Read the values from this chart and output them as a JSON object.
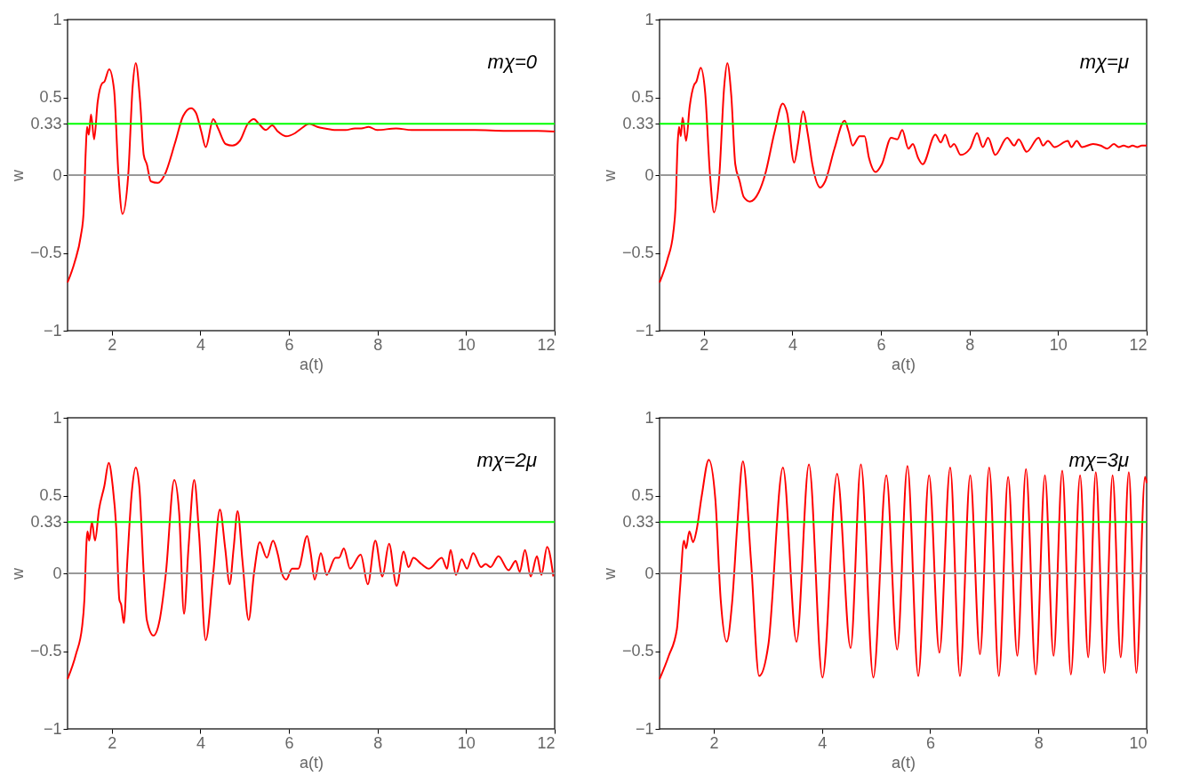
{
  "chart_data": [
    {
      "type": "line",
      "xlabel": "a(t)",
      "ylabel": "w",
      "xlim": [
        1,
        12
      ],
      "ylim": [
        -1,
        1
      ],
      "xticks": [
        2,
        4,
        6,
        8,
        10,
        12
      ],
      "yticks": [
        -1,
        -0.5,
        0,
        0.33,
        0.5,
        1
      ],
      "grid": false,
      "annotations": [
        "mχ=0"
      ],
      "ref_lines": [
        {
          "axis": "y",
          "value": 0.33,
          "color": "#00ff00"
        },
        {
          "axis": "y",
          "value": 0,
          "color": "#999999"
        }
      ],
      "series": [
        {
          "color": "#ff0000",
          "x": [
            1,
            1.16,
            1.3,
            1.36,
            1.41,
            1.44,
            1.48,
            1.53,
            1.6,
            1.68,
            1.78,
            1.83,
            1.94,
            2.05,
            2.15,
            2.24,
            2.37,
            2.47,
            2.54,
            2.64,
            2.72,
            2.79,
            2.88,
            3.04,
            3.19,
            3.43,
            3.61,
            3.79,
            3.9,
            4.02,
            4.12,
            4.29,
            4.4,
            4.57,
            4.72,
            4.89,
            5.07,
            5.21,
            5.32,
            5.48,
            5.62,
            5.75,
            5.93,
            6.14,
            6.28,
            6.46,
            6.64,
            6.81,
            7.06,
            7.28,
            7.49,
            7.63,
            7.8,
            7.99,
            8.42,
            8.77,
            9.48,
            10.2,
            10.91,
            11.62,
            12
          ],
          "values": [
            -0.69,
            -0.56,
            -0.39,
            -0.25,
            0.15,
            0.31,
            0.26,
            0.39,
            0.23,
            0.47,
            0.59,
            0.6,
            0.68,
            0.55,
            0.0,
            -0.25,
            0.0,
            0.57,
            0.72,
            0.47,
            0.13,
            0.07,
            -0.04,
            -0.05,
            0.0,
            0.21,
            0.38,
            0.43,
            0.4,
            0.28,
            0.18,
            0.36,
            0.3,
            0.2,
            0.19,
            0.22,
            0.33,
            0.36,
            0.33,
            0.29,
            0.32,
            0.28,
            0.25,
            0.27,
            0.3,
            0.33,
            0.31,
            0.3,
            0.29,
            0.29,
            0.3,
            0.3,
            0.31,
            0.29,
            0.3,
            0.29,
            0.29,
            0.29,
            0.285,
            0.285,
            0.28
          ]
        }
      ]
    },
    {
      "type": "line",
      "xlabel": "a(t)",
      "ylabel": "w",
      "xlim": [
        1,
        12
      ],
      "ylim": [
        -1,
        1
      ],
      "xticks": [
        2,
        4,
        6,
        8,
        10,
        12
      ],
      "yticks": [
        -1,
        -0.5,
        0,
        0.33,
        0.5,
        1
      ],
      "grid": false,
      "annotations": [
        "mχ=μ"
      ],
      "ref_lines": [
        {
          "axis": "y",
          "value": 0.33,
          "color": "#00ff00"
        },
        {
          "axis": "y",
          "value": 0,
          "color": "#999999"
        }
      ],
      "series": [
        {
          "color": "#ff0000",
          "x": [
            1,
            1.18,
            1.31,
            1.36,
            1.41,
            1.44,
            1.48,
            1.52,
            1.6,
            1.68,
            1.78,
            1.83,
            1.93,
            2.03,
            2.14,
            2.23,
            2.35,
            2.46,
            2.53,
            2.62,
            2.71,
            2.81,
            2.9,
            3.04,
            3.24,
            3.38,
            3.6,
            3.78,
            3.88,
            4.04,
            4.13,
            4.24,
            4.35,
            4.45,
            4.63,
            4.74,
            4.95,
            5.18,
            5.27,
            5.36,
            5.52,
            5.63,
            5.73,
            5.88,
            6.02,
            6.23,
            6.37,
            6.48,
            6.62,
            6.72,
            6.84,
            6.94,
            7.23,
            7.35,
            7.45,
            7.57,
            7.65,
            7.8,
            8.01,
            8.17,
            8.3,
            8.42,
            8.58,
            8.85,
            9.01,
            9.11,
            9.29,
            9.56,
            9.66,
            9.77,
            9.92,
            10.22,
            10.3,
            10.42,
            10.54,
            10.79,
            10.96,
            11.11,
            11.26,
            11.37,
            11.48,
            11.59,
            11.68,
            11.79,
            11.89,
            12
          ],
          "values": [
            -0.69,
            -0.54,
            -0.37,
            -0.21,
            0.21,
            0.31,
            0.25,
            0.37,
            0.22,
            0.44,
            0.58,
            0.6,
            0.69,
            0.53,
            0.0,
            -0.24,
            0.0,
            0.57,
            0.72,
            0.51,
            0.07,
            -0.04,
            -0.14,
            -0.17,
            -0.11,
            0.0,
            0.28,
            0.46,
            0.4,
            0.08,
            0.21,
            0.41,
            0.26,
            0.07,
            -0.08,
            -0.04,
            0.17,
            0.35,
            0.28,
            0.19,
            0.25,
            0.25,
            0.11,
            0.02,
            0.07,
            0.24,
            0.23,
            0.29,
            0.17,
            0.2,
            0.11,
            0.07,
            0.26,
            0.21,
            0.26,
            0.18,
            0.2,
            0.13,
            0.17,
            0.27,
            0.18,
            0.24,
            0.13,
            0.24,
            0.19,
            0.23,
            0.15,
            0.24,
            0.19,
            0.22,
            0.18,
            0.22,
            0.18,
            0.22,
            0.18,
            0.2,
            0.19,
            0.17,
            0.2,
            0.18,
            0.19,
            0.18,
            0.19,
            0.18,
            0.19,
            0.19
          ]
        }
      ]
    },
    {
      "type": "line",
      "xlabel": "a(t)",
      "ylabel": "w",
      "xlim": [
        1,
        12
      ],
      "ylim": [
        -1,
        1
      ],
      "xticks": [
        2,
        4,
        6,
        8,
        10,
        12
      ],
      "yticks": [
        -1,
        -0.5,
        0,
        0.33,
        0.5,
        1
      ],
      "grid": false,
      "annotations": [
        "mχ=2μ"
      ],
      "ref_lines": [
        {
          "axis": "y",
          "value": 0.33,
          "color": "#00ff00"
        },
        {
          "axis": "y",
          "value": 0,
          "color": "#999999"
        }
      ],
      "series": [
        {
          "color": "#ff0000",
          "x": [
            1,
            1.19,
            1.33,
            1.38,
            1.43,
            1.45,
            1.49,
            1.55,
            1.62,
            1.71,
            1.83,
            1.93,
            2.02,
            2.1,
            2.17,
            2.21,
            2.27,
            2.35,
            2.45,
            2.54,
            2.62,
            2.72,
            2.79,
            2.94,
            3.08,
            3.22,
            3.41,
            3.52,
            3.63,
            3.73,
            3.86,
            3.97,
            4.12,
            4.29,
            4.44,
            4.56,
            4.66,
            4.75,
            4.84,
            4.95,
            5.09,
            5.21,
            5.34,
            5.5,
            5.64,
            5.75,
            5.84,
            5.94,
            6.07,
            6.21,
            6.41,
            6.49,
            6.58,
            6.72,
            6.85,
            7.05,
            7.13,
            7.24,
            7.38,
            7.62,
            7.78,
            7.95,
            8.11,
            8.26,
            8.43,
            8.59,
            8.7,
            8.81,
            8.99,
            9.16,
            9.45,
            9.57,
            9.65,
            9.77,
            9.9,
            10.02,
            10.16,
            10.34,
            10.44,
            10.55,
            10.73,
            10.96,
            11.12,
            11.21,
            11.33,
            11.46,
            11.6,
            11.7,
            11.83,
            11.97
          ],
          "values": [
            -0.68,
            -0.52,
            -0.34,
            -0.17,
            0.21,
            0.27,
            0.21,
            0.33,
            0.21,
            0.41,
            0.56,
            0.71,
            0.56,
            0.29,
            -0.17,
            -0.2,
            -0.32,
            0.08,
            0.52,
            0.68,
            0.56,
            0.0,
            -0.3,
            -0.4,
            -0.3,
            0.0,
            0.6,
            0.39,
            -0.26,
            0.16,
            0.6,
            0.25,
            -0.43,
            0.0,
            0.41,
            0.16,
            -0.07,
            0.16,
            0.4,
            0.08,
            -0.3,
            0.0,
            0.2,
            0.1,
            0.21,
            0.12,
            0.0,
            -0.04,
            0.03,
            0.03,
            0.24,
            0.13,
            -0.04,
            0.13,
            -0.01,
            0.1,
            0.1,
            0.16,
            0.03,
            0.12,
            -0.07,
            0.21,
            -0.02,
            0.19,
            -0.08,
            0.14,
            0.04,
            0.1,
            0.06,
            0.03,
            0.1,
            0.03,
            0.15,
            -0.01,
            0.09,
            0.03,
            0.13,
            0.04,
            0.06,
            0.04,
            0.11,
            0.02,
            0.08,
            0.01,
            0.15,
            -0.02,
            0.11,
            -0.01,
            0.17,
            -0.02
          ]
        }
      ]
    },
    {
      "type": "line",
      "xlabel": "a(t)",
      "ylabel": "w",
      "xlim": [
        1,
        10
      ],
      "ylim": [
        -1,
        1
      ],
      "xticks": [
        2,
        4,
        6,
        8,
        10
      ],
      "yticks": [
        -1,
        -0.5,
        0,
        0.33,
        0.5,
        1
      ],
      "grid": false,
      "annotations": [
        "mχ=3μ"
      ],
      "ref_lines": [
        {
          "axis": "y",
          "value": 0.33,
          "color": "#00ff00"
        },
        {
          "axis": "y",
          "value": 0,
          "color": "#999999"
        }
      ],
      "series": [
        {
          "color": "#ff0000",
          "x": [
            1,
            1.17,
            1.32,
            1.38,
            1.45,
            1.49,
            1.55,
            1.62,
            1.68,
            1.78,
            1.91,
            2.03,
            2.13,
            2.24,
            2.34,
            2.44,
            2.54,
            2.69,
            2.84,
            3.01,
            3.28,
            3.53,
            3.76,
            4.01,
            4.28,
            4.53,
            4.72,
            4.95,
            5.19,
            5.39,
            5.58,
            5.78,
            5.98,
            6.17,
            6.37,
            6.55,
            6.74,
            6.92,
            7.09,
            7.27,
            7.44,
            7.61,
            7.77,
            7.95,
            8.12,
            8.28,
            8.44,
            8.6,
            8.77,
            8.92,
            9.06,
            9.22,
            9.37,
            9.52,
            9.67,
            9.81,
            9.97,
            10
          ],
          "values": [
            -0.68,
            -0.53,
            -0.36,
            -0.09,
            0.21,
            0.16,
            0.27,
            0.2,
            0.27,
            0.5,
            0.73,
            0.48,
            -0.17,
            -0.44,
            -0.19,
            0.33,
            0.72,
            0.08,
            -0.66,
            -0.46,
            0.68,
            -0.44,
            0.7,
            -0.67,
            0.64,
            -0.48,
            0.7,
            -0.67,
            0.63,
            -0.49,
            0.69,
            -0.66,
            0.63,
            -0.51,
            0.68,
            -0.66,
            0.63,
            -0.52,
            0.68,
            -0.66,
            0.62,
            -0.53,
            0.67,
            -0.65,
            0.63,
            -0.53,
            0.66,
            -0.65,
            0.63,
            -0.54,
            0.65,
            -0.64,
            0.63,
            -0.54,
            0.65,
            -0.64,
            0.62,
            0.58
          ]
        }
      ]
    }
  ]
}
